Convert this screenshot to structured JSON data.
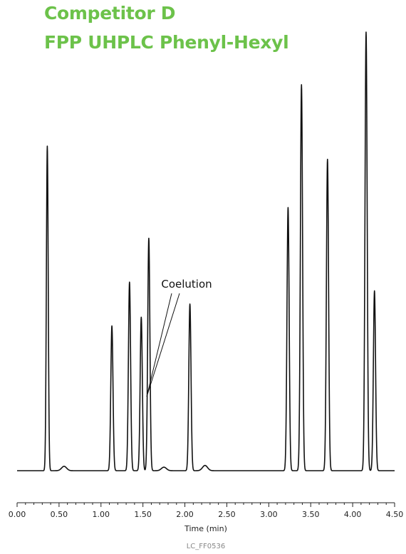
{
  "colors": {
    "title": "#6cc24a",
    "trace": "#111111",
    "axis": "#222222",
    "footer": "#888888"
  },
  "header": {
    "line1": "Competitor D",
    "line2": "FPP UHPLC Phenyl-Hexyl"
  },
  "chart_data": {
    "type": "line",
    "title": "Competitor D FPP UHPLC Phenyl-Hexyl",
    "xlabel": "Time (min)",
    "ylabel": "",
    "xlim": [
      0,
      4.5
    ],
    "x_ticks": [
      "0.00",
      "0.50",
      "1.00",
      "1.50",
      "2.00",
      "2.50",
      "3.00",
      "3.50",
      "4.00",
      "4.50"
    ],
    "grid": false,
    "baseline": 0.0,
    "peaks": [
      {
        "t": 0.36,
        "h": 0.74
      },
      {
        "t": 0.56,
        "h": 0.01
      },
      {
        "t": 1.13,
        "h": 0.33
      },
      {
        "t": 1.34,
        "h": 0.43
      },
      {
        "t": 1.48,
        "h": 0.35
      },
      {
        "t": 1.57,
        "h": 0.53
      },
      {
        "t": 1.75,
        "h": 0.008
      },
      {
        "t": 2.06,
        "h": 0.38
      },
      {
        "t": 2.24,
        "h": 0.012
      },
      {
        "t": 3.23,
        "h": 0.6
      },
      {
        "t": 3.39,
        "h": 0.88
      },
      {
        "t": 3.7,
        "h": 0.71
      },
      {
        "t": 4.16,
        "h": 1.0
      },
      {
        "t": 4.26,
        "h": 0.41
      }
    ],
    "annotations": [
      {
        "text": "Coelution",
        "target_t": 1.52
      }
    ]
  },
  "footer": {
    "code": "LC_FF0536"
  }
}
